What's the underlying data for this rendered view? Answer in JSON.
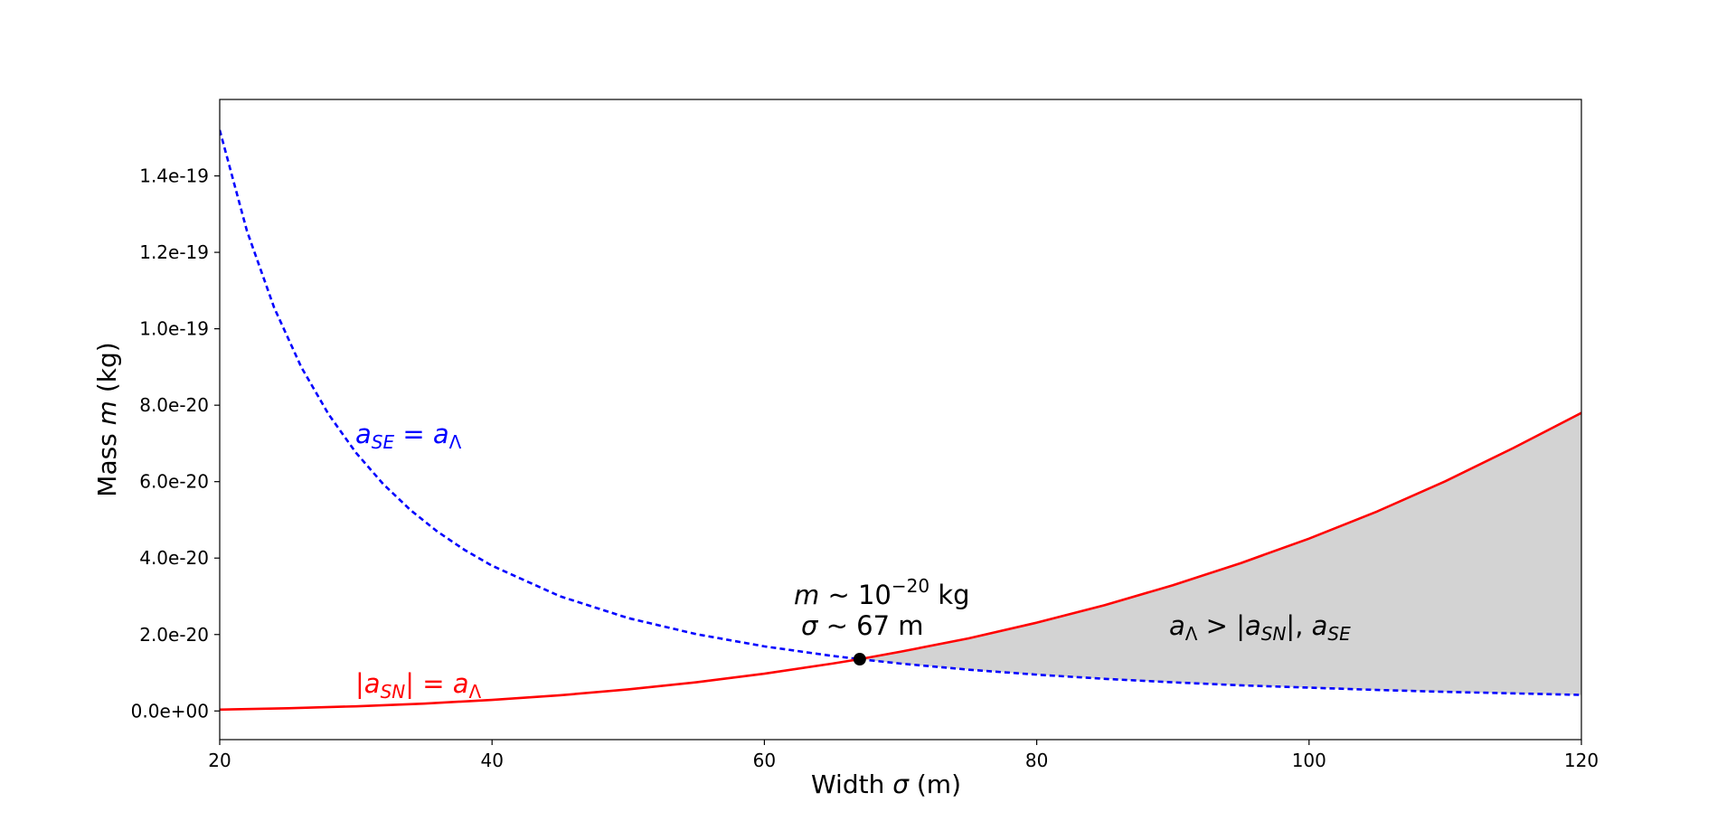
{
  "chart_data": {
    "type": "line",
    "xlabel_prefix": "Width ",
    "xlabel_symbol": "σ",
    "xlabel_suffix": " (m)",
    "ylabel_prefix": "Mass ",
    "ylabel_symbol": "m",
    "ylabel_suffix": " (kg)",
    "xlim": [
      20,
      120
    ],
    "ylim": [
      -7.5e-21,
      1.6e-19
    ],
    "grid": false,
    "x_ticks": [
      20,
      40,
      60,
      80,
      100,
      120
    ],
    "x_tick_labels": [
      "20",
      "40",
      "60",
      "80",
      "100",
      "120"
    ],
    "y_ticks": [
      0,
      2e-20,
      4e-20,
      6e-20,
      8e-20,
      1e-19,
      1.2e-19,
      1.4e-19
    ],
    "y_tick_labels": [
      "0.0e+00",
      "2.0e-20",
      "4.0e-20",
      "6.0e-20",
      "8.0e-20",
      "1.0e-19",
      "1.2e-19",
      "1.4e-19"
    ],
    "series": [
      {
        "key": "a_SE",
        "color": "#0000ff",
        "style": "dashed",
        "x": [
          20,
          22,
          24,
          26,
          28,
          30,
          32,
          34,
          36,
          38,
          40,
          45,
          50,
          55,
          60,
          65,
          67,
          70,
          75,
          80,
          85,
          90,
          95,
          100,
          105,
          110,
          115,
          120
        ],
        "y": [
          1.52e-19,
          1.256e-19,
          1.055e-19,
          8.99e-20,
          7.76e-20,
          6.76e-20,
          5.94e-20,
          5.26e-20,
          4.69e-20,
          4.21e-20,
          3.8e-20,
          3e-20,
          2.43e-20,
          2.01e-20,
          1.69e-20,
          1.44e-20,
          1.355e-20,
          1.24e-20,
          1.08e-20,
          9.5e-21,
          8.4e-21,
          7.5e-21,
          6.7e-21,
          6.1e-21,
          5.5e-21,
          5e-21,
          4.6e-21,
          4.2e-21
        ]
      },
      {
        "key": "a_SN",
        "color": "#ff0000",
        "style": "solid",
        "x": [
          20,
          25,
          30,
          35,
          40,
          45,
          50,
          55,
          60,
          65,
          67,
          70,
          75,
          80,
          85,
          90,
          95,
          100,
          105,
          110,
          115,
          120
        ],
        "y": [
          3.6e-22,
          7e-22,
          1.22e-21,
          1.93e-21,
          2.89e-21,
          4.11e-21,
          5.64e-21,
          7.51e-21,
          9.75e-21,
          1.24e-20,
          1.355e-20,
          1.55e-20,
          1.9e-20,
          2.31e-20,
          2.77e-20,
          3.29e-20,
          3.87e-20,
          4.51e-20,
          5.22e-20,
          6.01e-20,
          6.88e-20,
          7.8e-20
        ]
      }
    ],
    "shaded_region": {
      "color": "#d3d3d3",
      "x_from": 67,
      "x_to": 120
    },
    "intersection": {
      "x": 67,
      "y": 1.355e-20,
      "color": "#000000"
    },
    "annotations": {
      "se_label": {
        "a": "a",
        "sub": "SE",
        "eq": " = ",
        "rhs": "a",
        "rhs_sub": "Λ",
        "color": "#0000ff"
      },
      "sn_label": {
        "bar_l": "|",
        "a": "a",
        "sub": "SN",
        "bar_r": "|",
        "eq": " = ",
        "rhs": "a",
        "rhs_sub": "Λ",
        "color": "#ff0000"
      },
      "mass_note": {
        "sym": "m",
        "mid": " ~ 10",
        "exp": "−20",
        "unit": " kg"
      },
      "width_note": {
        "sym": "σ",
        "rest": " ~ 67 m"
      },
      "region_label": {
        "a": "a",
        "sub1": "Λ",
        "gt": " > |",
        "b": "a",
        "sub2": "SN",
        "mid": "|, ",
        "c": "a",
        "sub3": "SE"
      }
    }
  }
}
